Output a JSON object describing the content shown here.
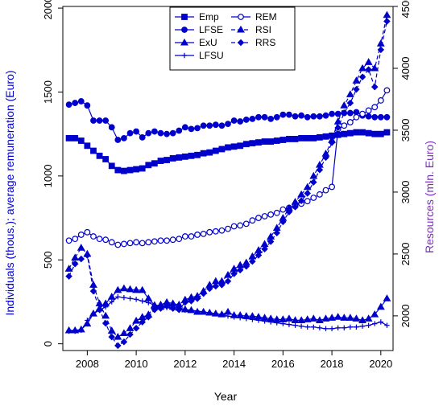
{
  "chart_data": {
    "type": "line",
    "xlabel": "Year",
    "ylabel_left": "Individuals (thous.); average remuneration (Euro)",
    "ylabel_right": "Resources (mln. Euro)",
    "xlim": [
      2007.0,
      2020.5
    ],
    "ylim_left": [
      -40,
      2010
    ],
    "ylim_right": [
      1720,
      4500
    ],
    "x_ticks": [
      "2008",
      "2010",
      "2012",
      "2014",
      "2016",
      "2018",
      "2020"
    ],
    "y_ticks_left": [
      "0",
      "500",
      "1000",
      "1500",
      "2000"
    ],
    "y_ticks_right": [
      "2000",
      "2500",
      "3000",
      "3500",
      "4000",
      "4500"
    ],
    "grid": false,
    "legend_position": "top-center",
    "colors": {
      "series": "#0000CD",
      "left_axis_title": "#0000CD",
      "right_axis_title": "#7B2FBE"
    },
    "series": [
      {
        "name": "Emp",
        "axis": "left",
        "marker": "square",
        "linestyle": "solid",
        "x": [
          2007.25,
          2007.5,
          2007.75,
          2008.0,
          2008.25,
          2008.5,
          2008.75,
          2009.0,
          2009.25,
          2009.5,
          2009.75,
          2010.0,
          2010.25,
          2010.5,
          2010.75,
          2011.0,
          2011.25,
          2011.5,
          2011.75,
          2012.0,
          2012.25,
          2012.5,
          2012.75,
          2013.0,
          2013.25,
          2013.5,
          2013.75,
          2014.0,
          2014.25,
          2014.5,
          2014.75,
          2015.0,
          2015.25,
          2015.5,
          2015.75,
          2016.0,
          2016.25,
          2016.5,
          2016.75,
          2017.0,
          2017.25,
          2017.5,
          2017.75,
          2018.0,
          2018.25,
          2018.5,
          2018.75,
          2019.0,
          2019.25,
          2019.5,
          2019.75,
          2020.0,
          2020.25
        ],
        "y": [
          1225,
          1225,
          1210,
          1180,
          1150,
          1120,
          1100,
          1060,
          1035,
          1030,
          1035,
          1040,
          1045,
          1065,
          1075,
          1090,
          1095,
          1105,
          1110,
          1115,
          1120,
          1125,
          1135,
          1140,
          1150,
          1160,
          1170,
          1175,
          1180,
          1190,
          1195,
          1200,
          1205,
          1205,
          1210,
          1215,
          1220,
          1220,
          1225,
          1225,
          1225,
          1230,
          1235,
          1240,
          1245,
          1250,
          1255,
          1260,
          1260,
          1255,
          1250,
          1250,
          1260
        ]
      },
      {
        "name": "LFSE",
        "axis": "left",
        "marker": "circle-filled",
        "linestyle": "solid",
        "x": [
          2007.25,
          2007.5,
          2007.75,
          2008.0,
          2008.25,
          2008.5,
          2008.75,
          2009.0,
          2009.25,
          2009.5,
          2009.75,
          2010.0,
          2010.25,
          2010.5,
          2010.75,
          2011.0,
          2011.25,
          2011.5,
          2011.75,
          2012.0,
          2012.25,
          2012.5,
          2012.75,
          2013.0,
          2013.25,
          2013.5,
          2013.75,
          2014.0,
          2014.25,
          2014.5,
          2014.75,
          2015.0,
          2015.25,
          2015.5,
          2015.75,
          2016.0,
          2016.25,
          2016.5,
          2016.75,
          2017.0,
          2017.25,
          2017.5,
          2017.75,
          2018.0,
          2018.25,
          2018.5,
          2018.75,
          2019.0,
          2019.25,
          2019.5,
          2019.75,
          2020.0,
          2020.25
        ],
        "y": [
          1425,
          1435,
          1445,
          1420,
          1330,
          1330,
          1330,
          1290,
          1215,
          1225,
          1255,
          1265,
          1230,
          1255,
          1265,
          1255,
          1250,
          1255,
          1270,
          1290,
          1280,
          1285,
          1300,
          1300,
          1305,
          1300,
          1310,
          1330,
          1325,
          1335,
          1340,
          1350,
          1350,
          1340,
          1350,
          1365,
          1365,
          1355,
          1360,
          1350,
          1355,
          1355,
          1360,
          1370,
          1370,
          1375,
          1375,
          1380,
          1360,
          1355,
          1350,
          1350,
          1350
        ]
      },
      {
        "name": "ExU",
        "axis": "left",
        "marker": "triangle",
        "linestyle": "solid",
        "x": [
          2007.25,
          2007.5,
          2007.75,
          2008.0,
          2008.25,
          2008.5,
          2008.75,
          2009.0,
          2009.25,
          2009.5,
          2009.75,
          2010.0,
          2010.25,
          2010.5,
          2010.75,
          2011.0,
          2011.25,
          2011.5,
          2011.75,
          2012.0,
          2012.25,
          2012.5,
          2012.75,
          2013.0,
          2013.25,
          2013.5,
          2013.75,
          2014.0,
          2014.25,
          2014.5,
          2014.75,
          2015.0,
          2015.25,
          2015.5,
          2015.75,
          2016.0,
          2016.25,
          2016.5,
          2016.75,
          2017.0,
          2017.25,
          2017.5,
          2017.75,
          2018.0,
          2018.25,
          2018.5,
          2018.75,
          2019.0,
          2019.25,
          2019.5,
          2019.75,
          2020.0,
          2020.25
        ],
        "y": [
          80,
          80,
          85,
          120,
          180,
          210,
          240,
          280,
          320,
          330,
          325,
          320,
          320,
          270,
          230,
          220,
          230,
          220,
          215,
          205,
          200,
          190,
          190,
          185,
          180,
          175,
          190,
          170,
          170,
          165,
          165,
          160,
          155,
          150,
          145,
          145,
          150,
          140,
          140,
          145,
          150,
          140,
          150,
          155,
          160,
          155,
          155,
          150,
          140,
          150,
          175,
          220,
          270
        ]
      },
      {
        "name": "LFSU",
        "axis": "left",
        "marker": "cross",
        "linestyle": "solid",
        "x": [
          2007.25,
          2007.5,
          2007.75,
          2008.0,
          2008.25,
          2008.5,
          2008.75,
          2009.0,
          2009.25,
          2009.5,
          2009.75,
          2010.0,
          2010.25,
          2010.5,
          2010.75,
          2011.0,
          2011.25,
          2011.5,
          2011.75,
          2012.0,
          2012.25,
          2012.5,
          2012.75,
          2013.0,
          2013.25,
          2013.5,
          2013.75,
          2014.0,
          2014.25,
          2014.5,
          2014.75,
          2015.0,
          2015.25,
          2015.5,
          2015.75,
          2016.0,
          2016.25,
          2016.5,
          2016.75,
          2017.0,
          2017.25,
          2017.5,
          2017.75,
          2018.0,
          2018.25,
          2018.5,
          2018.75,
          2019.0,
          2019.25,
          2019.5,
          2019.75,
          2020.0,
          2020.25
        ],
        "y": [
          75,
          75,
          80,
          140,
          180,
          200,
          220,
          250,
          280,
          275,
          270,
          265,
          255,
          245,
          230,
          225,
          215,
          210,
          205,
          200,
          200,
          195,
          190,
          185,
          180,
          175,
          165,
          160,
          155,
          150,
          145,
          140,
          135,
          130,
          125,
          120,
          115,
          110,
          105,
          100,
          100,
          95,
          90,
          90,
          95,
          95,
          100,
          100,
          105,
          110,
          120,
          130,
          110
        ]
      },
      {
        "name": "REM",
        "axis": "left",
        "marker": "circle-open",
        "linestyle": "solid",
        "x": [
          2007.25,
          2007.5,
          2007.75,
          2008.0,
          2008.25,
          2008.5,
          2008.75,
          2009.0,
          2009.25,
          2009.5,
          2009.75,
          2010.0,
          2010.25,
          2010.5,
          2010.75,
          2011.0,
          2011.25,
          2011.5,
          2011.75,
          2012.0,
          2012.25,
          2012.5,
          2012.75,
          2013.0,
          2013.25,
          2013.5,
          2013.75,
          2014.0,
          2014.25,
          2014.5,
          2014.75,
          2015.0,
          2015.25,
          2015.5,
          2015.75,
          2016.0,
          2016.25,
          2016.5,
          2016.75,
          2017.0,
          2017.25,
          2017.5,
          2017.75,
          2018.0,
          2018.25,
          2018.5,
          2018.75,
          2019.0,
          2019.25,
          2019.5,
          2019.75,
          2020.0,
          2020.25
        ],
        "y": [
          615,
          625,
          650,
          665,
          640,
          625,
          620,
          605,
          590,
          595,
          600,
          605,
          600,
          605,
          610,
          615,
          615,
          620,
          625,
          640,
          640,
          650,
          655,
          665,
          670,
          675,
          685,
          700,
          705,
          715,
          735,
          750,
          760,
          770,
          780,
          800,
          810,
          820,
          835,
          850,
          870,
          890,
          915,
          935,
          1280,
          1300,
          1320,
          1350,
          1370,
          1390,
          1410,
          1450,
          1510
        ]
      },
      {
        "name": "RSI",
        "axis": "right",
        "marker": "triangle",
        "linestyle": "dashed",
        "x": [
          2007.25,
          2007.5,
          2007.75,
          2008.0,
          2008.25,
          2008.5,
          2008.75,
          2009.0,
          2009.25,
          2009.5,
          2009.75,
          2010.0,
          2010.25,
          2010.5,
          2010.75,
          2011.0,
          2011.25,
          2011.5,
          2011.75,
          2012.0,
          2012.25,
          2012.5,
          2012.75,
          2013.0,
          2013.25,
          2013.5,
          2013.75,
          2014.0,
          2014.25,
          2014.5,
          2014.75,
          2015.0,
          2015.25,
          2015.5,
          2015.75,
          2016.0,
          2016.25,
          2016.5,
          2016.75,
          2017.0,
          2017.25,
          2017.5,
          2017.75,
          2018.0,
          2018.25,
          2018.5,
          2018.75,
          2019.0,
          2019.25,
          2019.5,
          2019.75,
          2020.0,
          2020.25
        ],
        "y": [
          2380,
          2470,
          2550,
          2500,
          2250,
          2100,
          2000,
          1880,
          1830,
          1860,
          1900,
          1960,
          1990,
          2010,
          2080,
          2090,
          2110,
          2100,
          2090,
          2130,
          2150,
          2160,
          2200,
          2250,
          2280,
          2280,
          2330,
          2380,
          2410,
          2430,
          2480,
          2530,
          2580,
          2640,
          2710,
          2790,
          2870,
          2920,
          2980,
          3040,
          3130,
          3220,
          3310,
          3420,
          3570,
          3700,
          3790,
          3900,
          4000,
          4050,
          4000,
          4200,
          4430
        ]
      },
      {
        "name": "RRS",
        "axis": "right",
        "marker": "diamond",
        "linestyle": "dashed",
        "x": [
          2007.25,
          2007.5,
          2007.75,
          2008.0,
          2008.25,
          2008.5,
          2008.75,
          2009.0,
          2009.25,
          2009.5,
          2009.75,
          2010.0,
          2010.25,
          2010.5,
          2010.75,
          2011.0,
          2011.25,
          2011.5,
          2011.75,
          2012.0,
          2012.25,
          2012.5,
          2012.75,
          2013.0,
          2013.25,
          2013.5,
          2013.75,
          2014.0,
          2014.25,
          2014.5,
          2014.75,
          2015.0,
          2015.25,
          2015.5,
          2015.75,
          2016.0,
          2016.25,
          2016.5,
          2016.75,
          2017.0,
          2017.25,
          2017.5,
          2017.75,
          2018.0,
          2018.25,
          2018.5,
          2018.75,
          2019.0,
          2019.25,
          2019.5,
          2019.75,
          2020.0,
          2020.25
        ],
        "y": [
          2320,
          2420,
          2460,
          2490,
          2200,
          2050,
          1940,
          1830,
          1760,
          1790,
          1850,
          1900,
          1950,
          1990,
          2050,
          2060,
          2080,
          2060,
          2050,
          2110,
          2120,
          2140,
          2180,
          2220,
          2240,
          2250,
          2280,
          2340,
          2370,
          2400,
          2440,
          2490,
          2540,
          2600,
          2670,
          2760,
          2840,
          2880,
          2930,
          2990,
          3080,
          3180,
          3280,
          3400,
          3520,
          3640,
          3720,
          3830,
          3930,
          3990,
          3850,
          4150,
          4380
        ]
      }
    ],
    "legend": {
      "left_column": [
        "Emp",
        "LFSE",
        "ExU",
        "LFSU"
      ],
      "right_column": [
        "REM",
        "RSI",
        "RRS"
      ]
    }
  }
}
